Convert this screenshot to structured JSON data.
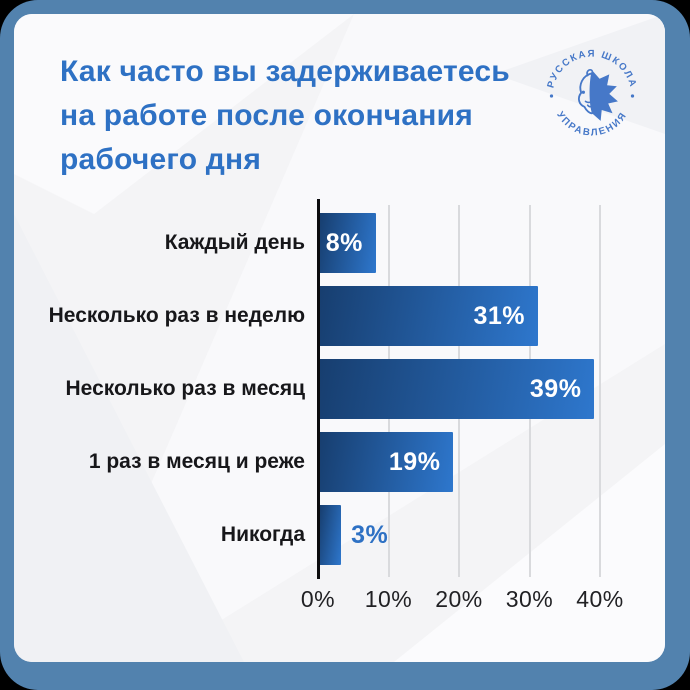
{
  "frame": {
    "outer_corner_color": "#000000",
    "border_color": "#5282ae",
    "card_bg": "#f4f4f6"
  },
  "header": {
    "title_lines": [
      "Как часто вы задерживаетесь",
      "на работе после окончания",
      "рабочего дня"
    ],
    "title_color": "#2e71c4"
  },
  "logo": {
    "name": "russian-school-of-management",
    "top_text": "РУССКАЯ ШКОЛА",
    "bottom_text": "УПРАВЛЕНИЯ",
    "separator": "•",
    "color": "#4678c8"
  },
  "chart_data": {
    "type": "bar",
    "orientation": "horizontal",
    "title": "Как часто вы задерживаетесь на работе после окончания рабочего дня",
    "categories": [
      "Каждый день",
      "Несколько раз в неделю",
      "Несколько раз в месяц",
      "1 раз в месяц и реже",
      "Никогда"
    ],
    "values": [
      8,
      31,
      39,
      19,
      3
    ],
    "value_labels": [
      "8%",
      "31%",
      "39%",
      "19%",
      "3%"
    ],
    "x_ticks": [
      "0%",
      "10%",
      "20%",
      "30%",
      "40%"
    ],
    "xlim": [
      0,
      40
    ],
    "grid": true,
    "legend": false,
    "bar_gradient_start": "#173e6f",
    "bar_gradient_end": "#2e77cd",
    "value_label_inside_color": "#ffffff",
    "value_label_outside_color": "#2e71c4",
    "gridline_color": "#d9dadd",
    "axis_color": "#0c0c0e",
    "category_color": "#17171a",
    "tick_label_color": "#212124"
  }
}
